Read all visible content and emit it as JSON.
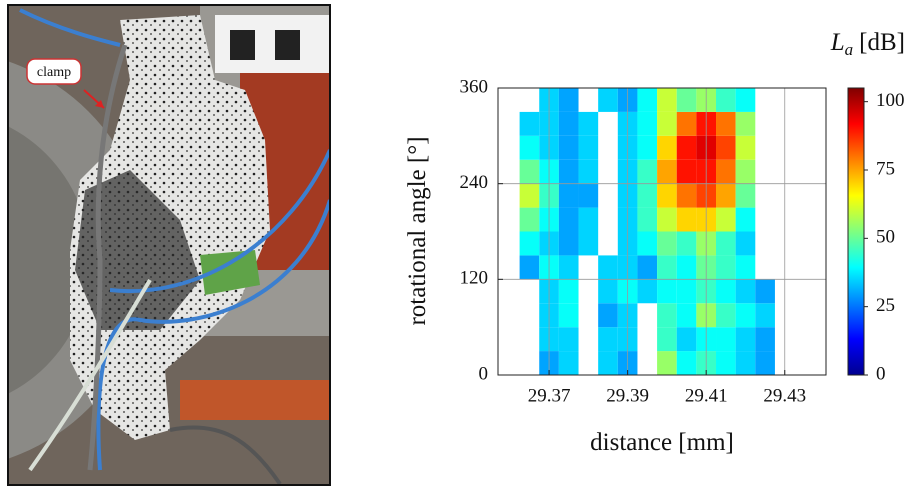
{
  "photo": {
    "label": "clamp"
  },
  "chart_data": {
    "type": "heatmap",
    "xlabel": "distance [mm]",
    "ylabel": "rotational angle [°]",
    "colorbar_label": {
      "symbol": "L",
      "subscript": "a",
      "unit": "[dB]"
    },
    "colormap": "jet",
    "grid": true,
    "x": [
      29.365,
      29.37,
      29.375,
      29.38,
      29.385,
      29.39,
      29.395,
      29.4,
      29.405,
      29.41,
      29.415,
      29.42,
      29.425
    ],
    "y": [
      15,
      45,
      75,
      105,
      135,
      165,
      195,
      225,
      255,
      285,
      315,
      345
    ],
    "values": [
      [
        null,
        30,
        35,
        null,
        35,
        30,
        null,
        55,
        40,
        45,
        40,
        35,
        30
      ],
      [
        null,
        35,
        35,
        null,
        35,
        35,
        null,
        45,
        35,
        40,
        40,
        35,
        30
      ],
      [
        null,
        35,
        40,
        null,
        30,
        35,
        null,
        45,
        40,
        55,
        45,
        40,
        35
      ],
      [
        null,
        35,
        40,
        null,
        35,
        40,
        35,
        40,
        40,
        45,
        40,
        35,
        30
      ],
      [
        30,
        40,
        35,
        null,
        35,
        35,
        30,
        45,
        40,
        50,
        45,
        40,
        null
      ],
      [
        40,
        35,
        30,
        35,
        null,
        35,
        40,
        50,
        45,
        55,
        45,
        35,
        null
      ],
      [
        50,
        40,
        30,
        35,
        null,
        35,
        45,
        60,
        70,
        70,
        60,
        40,
        null
      ],
      [
        60,
        45,
        30,
        30,
        null,
        35,
        45,
        70,
        80,
        85,
        75,
        50,
        null
      ],
      [
        50,
        40,
        30,
        35,
        null,
        35,
        45,
        75,
        90,
        90,
        80,
        55,
        null
      ],
      [
        40,
        35,
        30,
        35,
        null,
        35,
        40,
        70,
        90,
        95,
        85,
        60,
        null
      ],
      [
        35,
        35,
        30,
        35,
        null,
        35,
        40,
        60,
        80,
        90,
        80,
        55,
        null
      ],
      [
        null,
        35,
        30,
        null,
        35,
        30,
        40,
        60,
        50,
        55,
        45,
        40,
        null
      ]
    ],
    "xlim": [
      29.357,
      29.4405
    ],
    "xticks": [
      29.37,
      29.39,
      29.41,
      29.43
    ],
    "ylim": [
      0,
      360
    ],
    "yticks": [
      0,
      120,
      240,
      360
    ],
    "clim": [
      0,
      105
    ],
    "cticks": [
      0,
      25,
      50,
      75,
      100
    ]
  }
}
